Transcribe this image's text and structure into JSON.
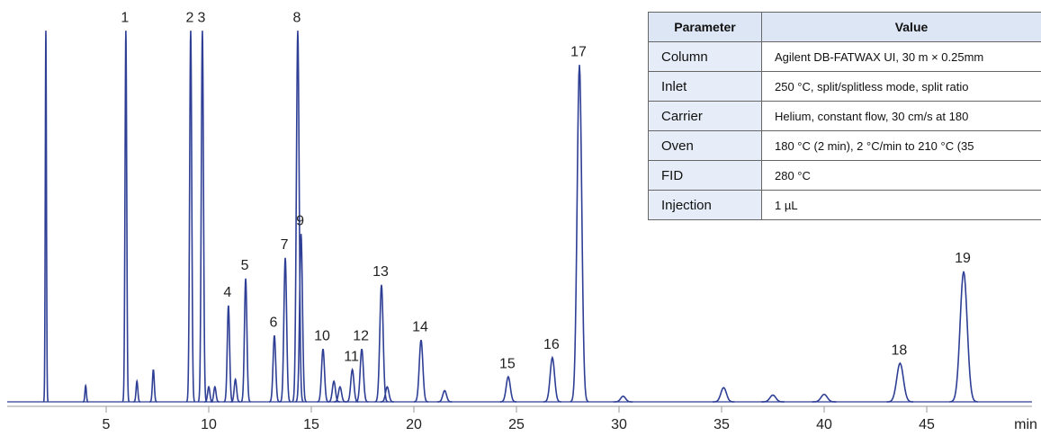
{
  "chart_data": {
    "type": "chromatogram",
    "x_label": "min",
    "color": "#2e3f95",
    "xlim": [
      0,
      50
    ],
    "xticks": [
      5,
      10,
      15,
      20,
      25,
      30,
      35,
      40,
      45
    ],
    "ylim": [
      0,
      100
    ],
    "peaks": [
      {
        "time": 2.06,
        "height": 99
      },
      {
        "time": 4.0,
        "height": 4.3
      },
      {
        "label": "1",
        "time": 5.96,
        "height": 99
      },
      {
        "time": 6.5,
        "height": 5.5
      },
      {
        "time": 7.3,
        "height": 8.6
      },
      {
        "label": "2",
        "time": 9.12,
        "height": 99
      },
      {
        "label": "3",
        "time": 9.69,
        "height": 99
      },
      {
        "time": 10.0,
        "height": 4
      },
      {
        "time": 10.3,
        "height": 4
      },
      {
        "label": "4",
        "time": 10.96,
        "height": 25.7
      },
      {
        "time": 11.3,
        "height": 6
      },
      {
        "label": "5",
        "time": 11.8,
        "height": 32.9
      },
      {
        "label": "6",
        "time": 13.2,
        "height": 17.7
      },
      {
        "label": "7",
        "time": 13.73,
        "height": 38.4
      },
      {
        "label": "8",
        "time": 14.34,
        "height": 99
      },
      {
        "label": "9",
        "time": 14.5,
        "height": 44.8
      },
      {
        "label": "10",
        "time": 15.57,
        "height": 14.1
      },
      {
        "time": 16.1,
        "height": 5.5
      },
      {
        "time": 16.4,
        "height": 4
      },
      {
        "label": "11",
        "time": 17.0,
        "height": 8.6
      },
      {
        "label": "12",
        "time": 17.46,
        "height": 14.1
      },
      {
        "label": "13",
        "time": 18.42,
        "height": 31.2
      },
      {
        "time": 18.7,
        "height": 4
      },
      {
        "label": "14",
        "time": 20.35,
        "height": 16.5
      },
      {
        "time": 21.5,
        "height": 3
      },
      {
        "label": "15",
        "time": 24.6,
        "height": 6.7
      },
      {
        "label": "16",
        "time": 26.75,
        "height": 11.8
      },
      {
        "label": "17",
        "time": 28.07,
        "height": 89.9
      },
      {
        "time": 30.2,
        "height": 1.5
      },
      {
        "time": 35.1,
        "height": 3.8
      },
      {
        "time": 37.5,
        "height": 1.8
      },
      {
        "time": 40.0,
        "height": 2
      },
      {
        "label": "18",
        "time": 43.7,
        "height": 10.3
      },
      {
        "label": "19",
        "time": 46.8,
        "height": 34.8
      }
    ]
  },
  "table": {
    "header": [
      "Parameter",
      "Value"
    ],
    "rows": [
      [
        "Column",
        "Agilent DB-FATWAX UI, 30 m × 0.25mm"
      ],
      [
        "Inlet",
        "250 °C, split/splitless mode, split ratio"
      ],
      [
        "Carrier",
        "Helium, constant flow, 30 cm/s at 180"
      ],
      [
        "Oven",
        "180 °C (2 min), 2 °C/min to 210 °C (35"
      ],
      [
        "FID",
        "280 °C"
      ],
      [
        "Injection",
        "1 µL"
      ]
    ]
  }
}
